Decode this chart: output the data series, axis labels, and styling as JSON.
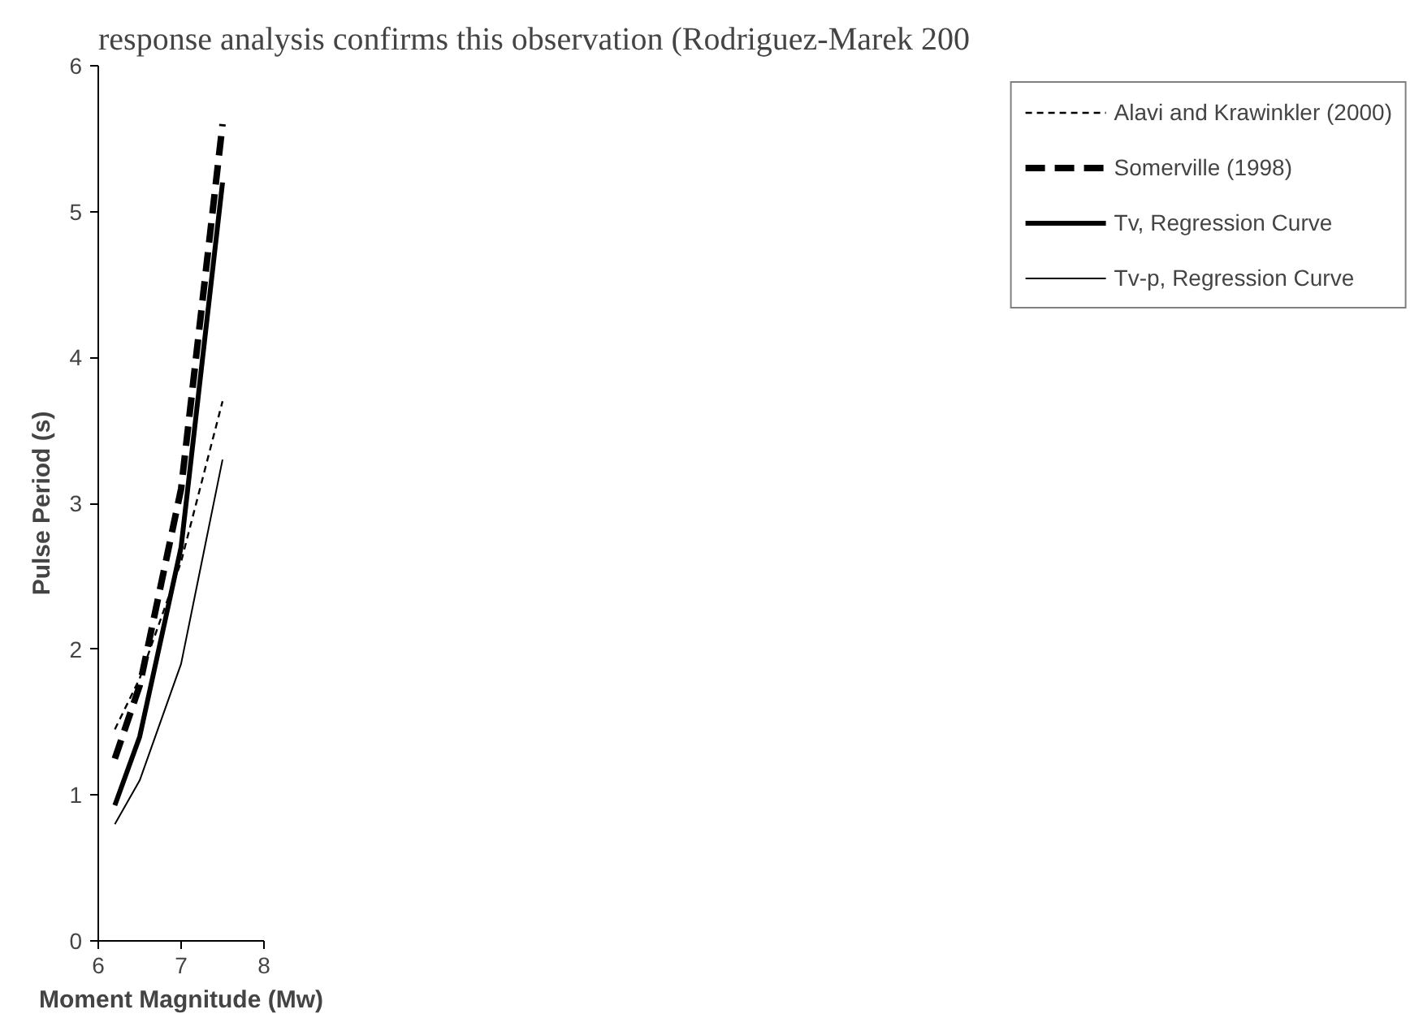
{
  "chart_data": {
    "type": "line",
    "annotations": [
      "response analysis confirms this observation (Rodriguez-Marek 200"
    ],
    "xlabel": "Moment Magnitude (Mw)",
    "ylabel": "Pulse Period (s)",
    "x": [
      6.2,
      6.5,
      7,
      7.5
    ],
    "series": [
      {
        "name": "Alavi and Krawinkler (2000)",
        "color": "#000000",
        "line_style": "dashed",
        "values": [
          1.45,
          1.8,
          2.6,
          3.7
        ]
      },
      {
        "name": "Somerville (1998)",
        "color": "#000000",
        "line_style": "dashed",
        "values": [
          1.25,
          1.75,
          3.1,
          5.6
        ]
      },
      {
        "name": "Tv, Regression Curve",
        "color": "#000000",
        "line_style": "solid",
        "values": [
          0.93,
          1.4,
          2.7,
          5.2
        ]
      },
      {
        "name": "Tv-p, Regression Curve",
        "color": "#000000",
        "line_style": "solid",
        "values": [
          0.8,
          1.1,
          1.9,
          3.3
        ]
      }
    ],
    "xlim": [
      6,
      8
    ],
    "ylim": [
      0,
      6
    ],
    "xticks": [
      6,
      7,
      8
    ],
    "yticks": [
      0,
      1,
      2,
      3,
      4,
      5,
      6
    ],
    "grid": false,
    "legend": "right",
    "marker": "none"
  }
}
